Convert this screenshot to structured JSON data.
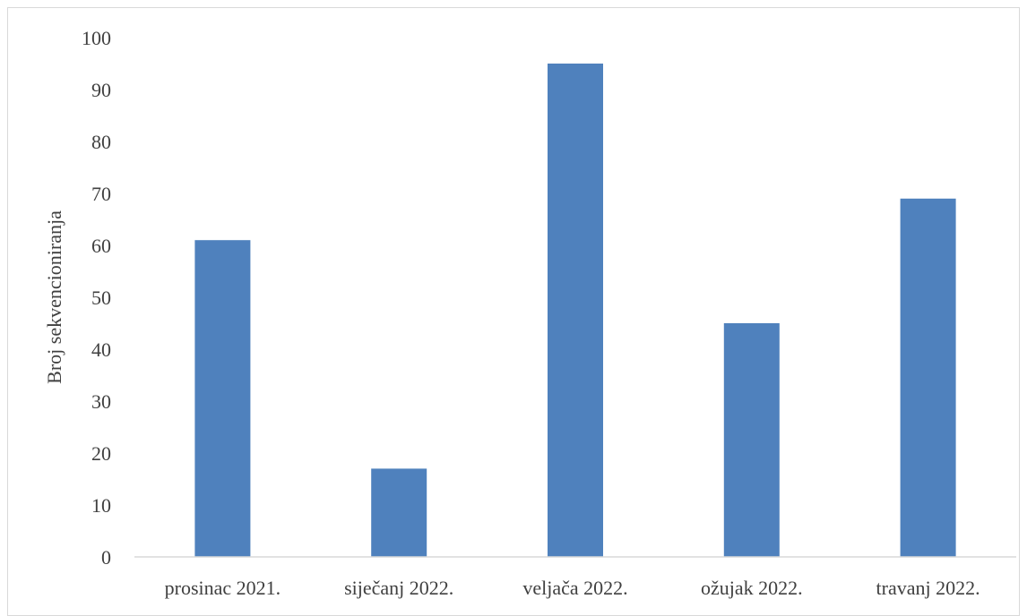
{
  "chart_data": {
    "type": "bar",
    "title": "",
    "xlabel": "",
    "ylabel": "Broj sekvencioniranja",
    "categories": [
      "prosinac 2021.",
      "siječanj 2022.",
      "veljača 2022.",
      "ožujak 2022.",
      "travanj 2022."
    ],
    "values": [
      61,
      17,
      95,
      45,
      69
    ],
    "ylim": [
      0,
      100
    ],
    "yticks": [
      0,
      10,
      20,
      30,
      40,
      50,
      60,
      70,
      80,
      90,
      100
    ],
    "grid": false,
    "legend": "none",
    "bar_color": "#4f81bd",
    "axis_color": "#d9d9d9"
  }
}
